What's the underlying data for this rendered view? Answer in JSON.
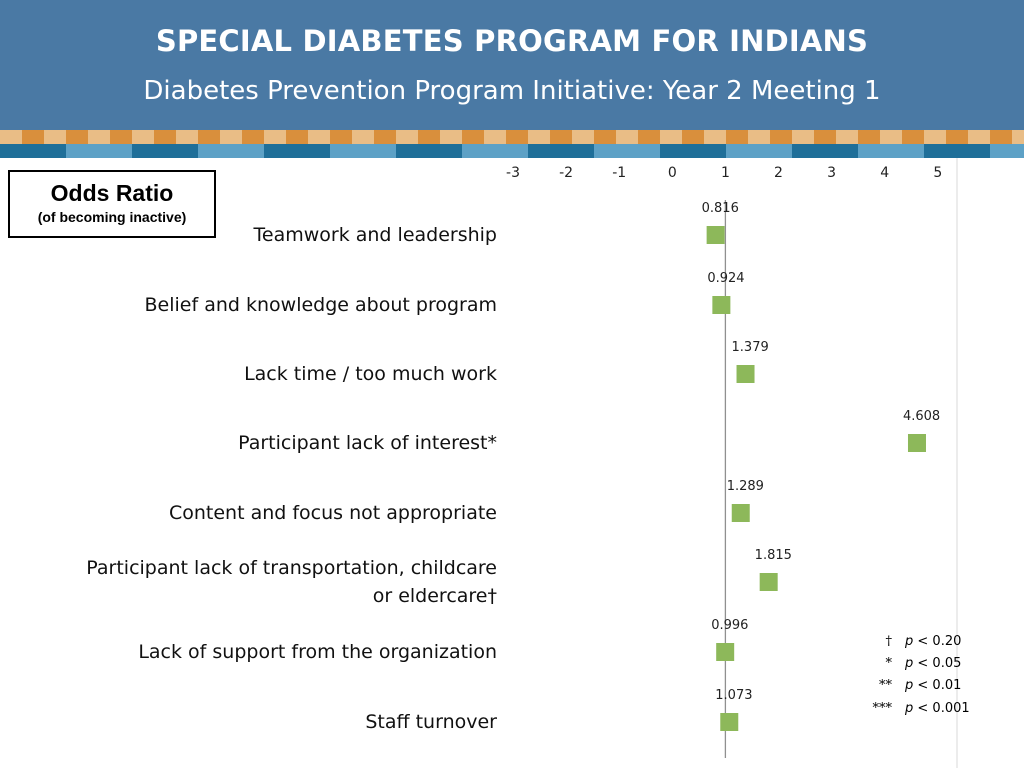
{
  "header": {
    "title": "SPECIAL DIABETES PROGRAM FOR INDIANS",
    "subtitle": "Diabetes Prevention Program Initiative:  Year 2 Meeting 1"
  },
  "legend_box": {
    "title": "Odds Ratio",
    "subtitle": "(of becoming inactive)"
  },
  "colors": {
    "banner": "#4a79a4",
    "marker": "#8db85a",
    "reference_line": "#909090"
  },
  "chart_data": {
    "type": "scatter",
    "orientation": "horizontal",
    "x_ticks": [
      "-3",
      "-2",
      "-1",
      "0",
      "1",
      "2",
      "3",
      "4",
      "5"
    ],
    "xlim": [
      -3,
      5
    ],
    "reference_line": 1,
    "categories": [
      "Teamwork and leadership",
      "Belief and knowledge about program",
      "Lack time / too much work",
      "Participant lack of interest*",
      "Content and focus not appropriate",
      "Participant lack of transportation, childcare\nor eldercare†",
      "Lack of support from the organization",
      "Staff turnover"
    ],
    "values": [
      0.816,
      0.924,
      1.379,
      4.608,
      1.289,
      1.815,
      0.996,
      1.073
    ],
    "value_labels": [
      "0.816",
      "0.924",
      "1.379",
      "4.608",
      "1.289",
      "1.815",
      "0.996",
      "1.073"
    ],
    "significance_key": [
      {
        "symbol": "†",
        "text": "< 0.20"
      },
      {
        "symbol": "*",
        "text": "< 0.05"
      },
      {
        "symbol": "**",
        "text": "< 0.01"
      },
      {
        "symbol": "***",
        "text": "< 0.001"
      }
    ],
    "significance_var": "p"
  }
}
